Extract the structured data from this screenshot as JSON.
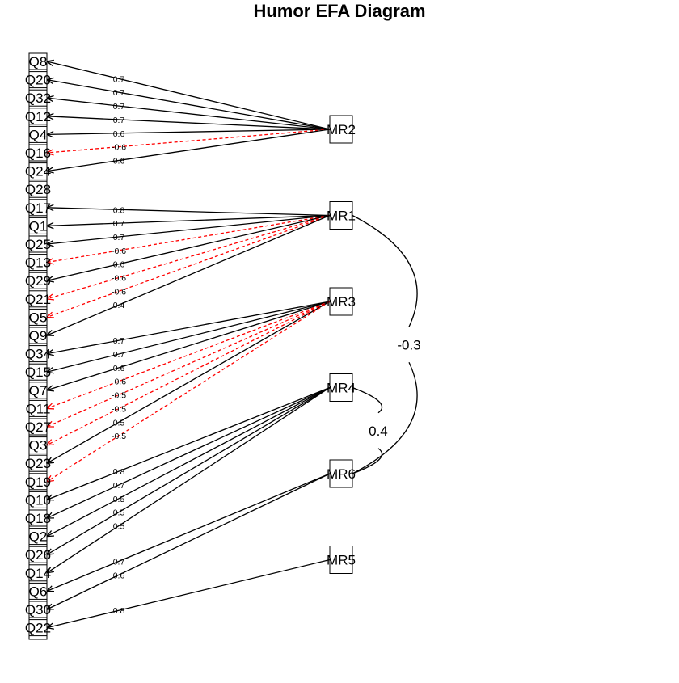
{
  "title": "Humor EFA Diagram",
  "items": [
    "Q8",
    "Q20",
    "Q32",
    "Q12",
    "Q4",
    "Q16",
    "Q24",
    "Q28",
    "Q17",
    "Q1",
    "Q25",
    "Q13",
    "Q29",
    "Q21",
    "Q5",
    "Q9",
    "Q34",
    "Q15",
    "Q7",
    "Q11",
    "Q27",
    "Q3",
    "Q23",
    "Q19",
    "Q10",
    "Q18",
    "Q2",
    "Q26",
    "Q14",
    "Q6",
    "Q30",
    "Q22"
  ],
  "factors": [
    "MR2",
    "MR1",
    "MR3",
    "MR4",
    "MR6",
    "MR5"
  ],
  "loadings": [
    {
      "item": "Q8",
      "factor": "MR2",
      "label": "0.7"
    },
    {
      "item": "Q20",
      "factor": "MR2",
      "label": "0.7"
    },
    {
      "item": "Q32",
      "factor": "MR2",
      "label": "0.7"
    },
    {
      "item": "Q12",
      "factor": "MR2",
      "label": "0.7"
    },
    {
      "item": "Q4",
      "factor": "MR2",
      "label": "0.6"
    },
    {
      "item": "Q16",
      "factor": "MR2",
      "label": "-0.6"
    },
    {
      "item": "Q24",
      "factor": "MR2",
      "label": "0.6"
    },
    {
      "item": "Q17",
      "factor": "MR1",
      "label": "0.8"
    },
    {
      "item": "Q1",
      "factor": "MR1",
      "label": "0.7"
    },
    {
      "item": "Q25",
      "factor": "MR1",
      "label": "0.7"
    },
    {
      "item": "Q13",
      "factor": "MR1",
      "label": "-0.6"
    },
    {
      "item": "Q29",
      "factor": "MR1",
      "label": "0.6"
    },
    {
      "item": "Q21",
      "factor": "MR1",
      "label": "-0.6"
    },
    {
      "item": "Q5",
      "factor": "MR1",
      "label": "-0.6"
    },
    {
      "item": "Q9",
      "factor": "MR1",
      "label": "0.4"
    },
    {
      "item": "Q34",
      "factor": "MR3",
      "label": "0.7"
    },
    {
      "item": "Q15",
      "factor": "MR3",
      "label": "0.7"
    },
    {
      "item": "Q7",
      "factor": "MR3",
      "label": "0.6"
    },
    {
      "item": "Q11",
      "factor": "MR3",
      "label": "-0.6"
    },
    {
      "item": "Q27",
      "factor": "MR3",
      "label": "-0.5"
    },
    {
      "item": "Q3",
      "factor": "MR3",
      "label": "-0.5"
    },
    {
      "item": "Q23",
      "factor": "MR3",
      "label": "0.5"
    },
    {
      "item": "Q19",
      "factor": "MR3",
      "label": "-0.5"
    },
    {
      "item": "Q10",
      "factor": "MR4",
      "label": "0.8"
    },
    {
      "item": "Q18",
      "factor": "MR4",
      "label": "0.7"
    },
    {
      "item": "Q2",
      "factor": "MR4",
      "label": "0.5"
    },
    {
      "item": "Q26",
      "factor": "MR4",
      "label": "0.5"
    },
    {
      "item": "Q14",
      "factor": "MR4",
      "label": "0.5"
    },
    {
      "item": "Q6",
      "factor": "MR6",
      "label": "0.7"
    },
    {
      "item": "Q30",
      "factor": "MR6",
      "label": "0.6"
    },
    {
      "item": "Q22",
      "factor": "MR5",
      "label": "0.8"
    }
  ],
  "correlations": [
    {
      "from": "MR1",
      "to": "MR6",
      "label": "-0.3"
    },
    {
      "from": "MR4",
      "to": "MR6",
      "label": "0.4"
    }
  ]
}
